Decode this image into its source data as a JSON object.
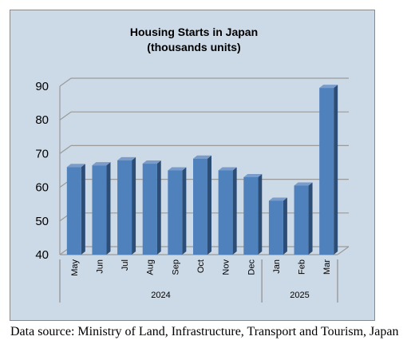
{
  "chart_data": {
    "type": "bar",
    "title": "Housing Starts in Japan",
    "subtitle": "(thousands units)",
    "categories": [
      "May",
      "Jun",
      "Jul",
      "Aug",
      "Sep",
      "Oct",
      "Nov",
      "Dec",
      "Jan",
      "Feb",
      "Mar"
    ],
    "values": [
      66,
      66.5,
      68,
      67,
      65,
      68.5,
      65,
      63,
      56,
      60.5,
      89.5
    ],
    "year_groups": [
      {
        "label": "2024",
        "categories": [
          "May",
          "Jun",
          "Jul",
          "Aug",
          "Sep",
          "Oct",
          "Nov",
          "Dec"
        ]
      },
      {
        "label": "2025",
        "categories": [
          "Jan",
          "Feb",
          "Mar"
        ]
      }
    ],
    "ylim": [
      40,
      90
    ],
    "yticks": [
      40,
      50,
      60,
      70,
      80,
      90
    ],
    "grid": true,
    "bar_color": "#4f81bd",
    "background_color": "#ccd9e6"
  },
  "source_note": "Data source: Ministry of Land, Infrastructure, Transport and Tourism, Japan"
}
